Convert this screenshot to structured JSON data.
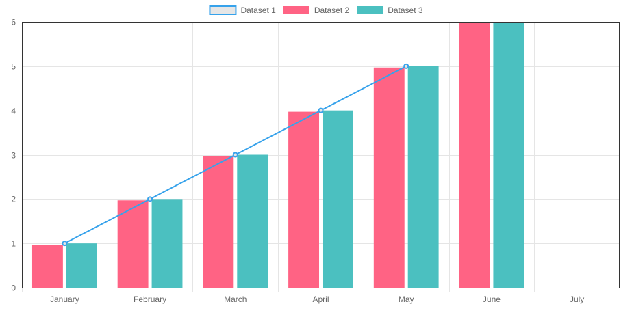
{
  "chart_data": {
    "type": "bar",
    "title": "",
    "xlabel": "",
    "ylabel": "",
    "categories": [
      "January",
      "February",
      "March",
      "April",
      "May",
      "June",
      "July"
    ],
    "ylim": [
      0,
      6
    ],
    "yticks": [
      "0",
      "1",
      "2",
      "3",
      "4",
      "5",
      "6"
    ],
    "grid": true,
    "legend_position": "top-center",
    "series": [
      {
        "name": "Dataset 1",
        "type": "line",
        "values": [
          1,
          2,
          3,
          4,
          5,
          null,
          null
        ],
        "color": "#36a2eb",
        "fill": "#e6e6e6"
      },
      {
        "name": "Dataset 2",
        "type": "bar",
        "values": [
          0.97,
          1.97,
          2.97,
          3.97,
          4.97,
          5.97,
          null
        ],
        "color": "#ff6384"
      },
      {
        "name": "Dataset 3",
        "type": "bar",
        "values": [
          1,
          2,
          3,
          4,
          5,
          6,
          null
        ],
        "color": "#4bc0c0"
      }
    ]
  }
}
